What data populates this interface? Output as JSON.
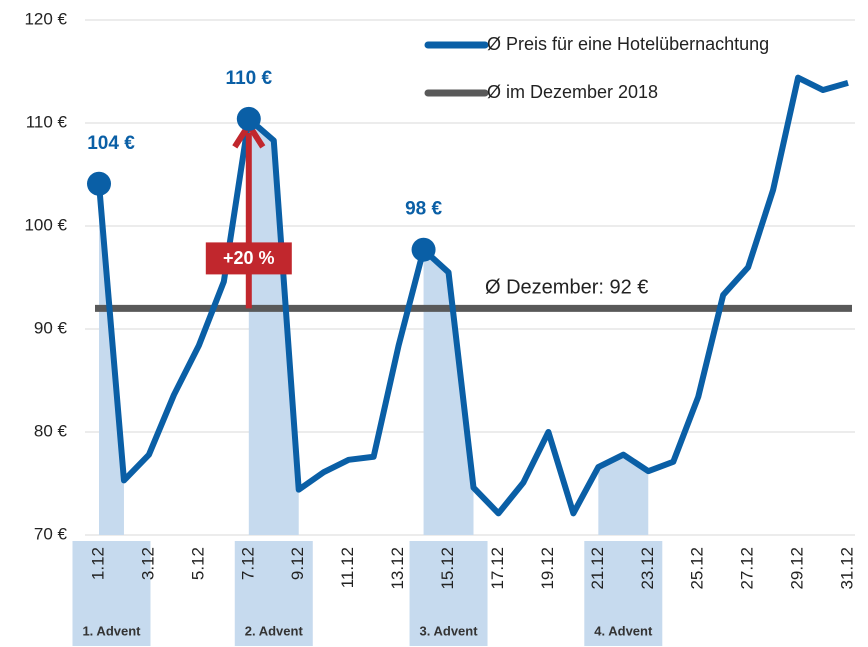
{
  "chart_data": {
    "type": "line",
    "x": [
      1,
      2,
      3,
      4,
      5,
      6,
      7,
      8,
      9,
      10,
      11,
      12,
      13,
      14,
      15,
      16,
      17,
      18,
      19,
      20,
      21,
      22,
      23,
      24,
      25,
      26,
      27,
      28,
      29,
      30,
      31
    ],
    "xlim": [
      1,
      31
    ],
    "xticks": [
      {
        "value": 1,
        "label": "1.12"
      },
      {
        "value": 3,
        "label": "3.12"
      },
      {
        "value": 5,
        "label": "5.12"
      },
      {
        "value": 7,
        "label": "7.12"
      },
      {
        "value": 9,
        "label": "9.12"
      },
      {
        "value": 11,
        "label": "11.12"
      },
      {
        "value": 13,
        "label": "13.12"
      },
      {
        "value": 15,
        "label": "15.12"
      },
      {
        "value": 17,
        "label": "17.12"
      },
      {
        "value": 19,
        "label": "19.12"
      },
      {
        "value": 21,
        "label": "21.12"
      },
      {
        "value": 23,
        "label": "23.12"
      },
      {
        "value": 25,
        "label": "25.12"
      },
      {
        "value": 27,
        "label": "27.12"
      },
      {
        "value": 29,
        "label": "29.12"
      },
      {
        "value": 31,
        "label": "31.12"
      }
    ],
    "ylim": [
      70,
      120
    ],
    "yticks": [
      {
        "value": 70,
        "label": "70 €"
      },
      {
        "value": 80,
        "label": "80 €"
      },
      {
        "value": 90,
        "label": "90 €"
      },
      {
        "value": 100,
        "label": "100 €"
      },
      {
        "value": 110,
        "label": "110 €"
      },
      {
        "value": 120,
        "label": "120 €"
      }
    ],
    "grid": true,
    "series": [
      {
        "name": "Ø Preis für eine Hotelübernachtung",
        "color": "#0a5fa6",
        "values": [
          104.1,
          75.3,
          77.8,
          83.6,
          88.4,
          94.6,
          110.4,
          108.3,
          74.4,
          76.1,
          77.3,
          77.6,
          88.4,
          97.7,
          95.5,
          74.6,
          72.1,
          75.1,
          80,
          72.1,
          76.6,
          77.8,
          76.2,
          77.1,
          83.4,
          93.3,
          96,
          103.5,
          114.4,
          113.2,
          113.9
        ],
        "value_labels": [
          "104 €",
          null,
          null,
          null,
          null,
          null,
          "110 €",
          null,
          null,
          null,
          null,
          null,
          null,
          "98 €",
          null,
          null,
          null,
          null,
          null,
          null,
          null,
          null,
          null,
          null,
          null,
          null,
          null,
          null,
          null,
          null,
          null
        ]
      },
      {
        "name": "Ø im Dezember 2018",
        "color": "#595959",
        "value": 92,
        "label": "Ø Dezember: 92 €"
      }
    ],
    "advents": [
      {
        "label": "1. Advent",
        "from": 1,
        "to": 2
      },
      {
        "label": "2. Advent",
        "from": 7,
        "to": 9
      },
      {
        "label": "3. Advent",
        "from": 14,
        "to": 16
      },
      {
        "label": "4. Advent",
        "from": 21,
        "to": 23
      }
    ],
    "band_color": "#c6daee",
    "increase": {
      "label": "+20 %",
      "from": 92,
      "to": 110.4,
      "x": 7,
      "color": "#c1272d"
    }
  }
}
